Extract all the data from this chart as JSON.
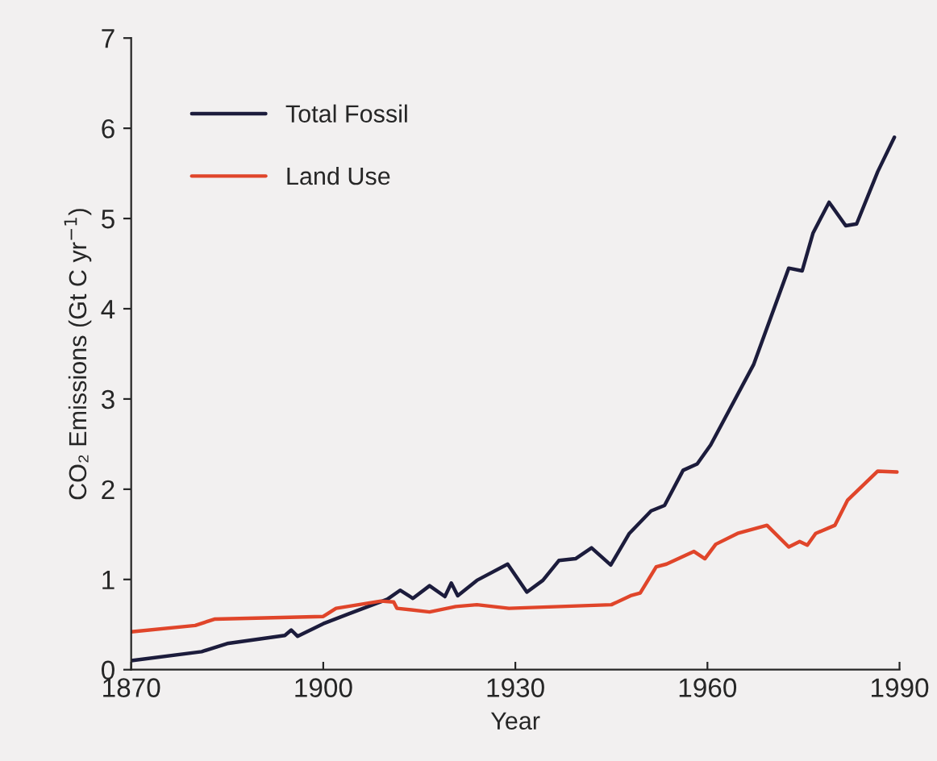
{
  "chart_data": {
    "type": "line",
    "xlabel": "Year",
    "ylabel": "CO₂ Emissions (Gt C yr$^{−1}$)",
    "xlim": [
      1870,
      1990
    ],
    "xticks": [
      1870,
      1900,
      1930,
      1960,
      1990
    ],
    "ylim": [
      0,
      7
    ],
    "yticks": [
      0,
      1,
      2,
      3,
      4,
      5,
      6,
      7
    ],
    "grid": false,
    "legend": "top left",
    "marker": "none",
    "line_style": "solid",
    "series": [
      {
        "name": "Total Fossil",
        "color": "#1c1c3c",
        "x": [
          1870,
          1881,
          1885,
          1894,
          1895,
          1896,
          1900,
          1904,
          1910,
          1912,
          1914,
          1916.6,
          1919,
          1920,
          1921,
          1924,
          1928.8,
          1931.8,
          1934.3,
          1936.8,
          1939.4,
          1941.9,
          1944.9,
          1947.8,
          1951.2,
          1953.3,
          1956.2,
          1958.4,
          1960.5,
          1967.2,
          1972.7,
          1974.8,
          1976.5,
          1979,
          1981.6,
          1983.3,
          1986.6,
          1989.2
        ],
        "values": [
          0.1,
          0.2,
          0.29,
          0.38,
          0.44,
          0.37,
          0.51,
          0.62,
          0.78,
          0.88,
          0.79,
          0.93,
          0.81,
          0.96,
          0.82,
          0.99,
          1.17,
          0.86,
          0.99,
          1.21,
          1.23,
          1.35,
          1.16,
          1.51,
          1.76,
          1.82,
          2.21,
          2.28,
          2.49,
          3.38,
          4.45,
          4.42,
          4.84,
          5.18,
          4.92,
          4.94,
          5.52,
          5.9
        ]
      },
      {
        "name": "Land Use",
        "color": "#e0452a",
        "x": [
          1870,
          1880,
          1883,
          1900,
          1902,
          1909,
          1911,
          1911.5,
          1916.6,
          1920.7,
          1924,
          1929,
          1945,
          1948,
          1949.5,
          1952,
          1953.6,
          1957.9,
          1959.6,
          1961.3,
          1964.7,
          1969.3,
          1972.7,
          1974.4,
          1975.6,
          1976.9,
          1979.9,
          1981.9,
          1986.6,
          1989.6
        ],
        "values": [
          0.42,
          0.49,
          0.56,
          0.59,
          0.68,
          0.76,
          0.75,
          0.68,
          0.64,
          0.7,
          0.72,
          0.68,
          0.72,
          0.82,
          0.85,
          1.14,
          1.17,
          1.31,
          1.23,
          1.39,
          1.51,
          1.6,
          1.36,
          1.42,
          1.38,
          1.51,
          1.6,
          1.88,
          2.2,
          2.19
        ]
      }
    ]
  }
}
